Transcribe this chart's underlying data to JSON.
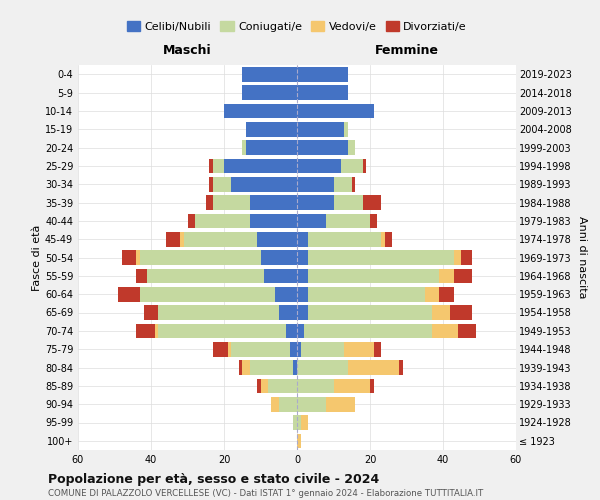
{
  "age_groups": [
    "100+",
    "95-99",
    "90-94",
    "85-89",
    "80-84",
    "75-79",
    "70-74",
    "65-69",
    "60-64",
    "55-59",
    "50-54",
    "45-49",
    "40-44",
    "35-39",
    "30-34",
    "25-29",
    "20-24",
    "15-19",
    "10-14",
    "5-9",
    "0-4"
  ],
  "birth_years": [
    "≤ 1923",
    "1924-1928",
    "1929-1933",
    "1934-1938",
    "1939-1943",
    "1944-1948",
    "1949-1953",
    "1954-1958",
    "1959-1963",
    "1964-1968",
    "1969-1973",
    "1974-1978",
    "1979-1983",
    "1984-1988",
    "1989-1993",
    "1994-1998",
    "1999-2003",
    "2004-2008",
    "2009-2013",
    "2014-2018",
    "2019-2023"
  ],
  "maschi_celibe": [
    0,
    0,
    0,
    0,
    1,
    2,
    3,
    5,
    6,
    9,
    10,
    11,
    13,
    13,
    18,
    20,
    14,
    14,
    20,
    15,
    15
  ],
  "maschi_coniugato": [
    0,
    1,
    5,
    8,
    12,
    16,
    35,
    33,
    37,
    32,
    33,
    20,
    15,
    10,
    5,
    3,
    1,
    0,
    0,
    0,
    0
  ],
  "maschi_vedovo": [
    0,
    0,
    2,
    2,
    2,
    1,
    1,
    0,
    0,
    0,
    1,
    1,
    0,
    0,
    0,
    0,
    0,
    0,
    0,
    0,
    0
  ],
  "maschi_divorziato": [
    0,
    0,
    0,
    1,
    1,
    4,
    5,
    4,
    6,
    3,
    4,
    4,
    2,
    2,
    1,
    1,
    0,
    0,
    0,
    0,
    0
  ],
  "femmine_celibe": [
    0,
    0,
    0,
    0,
    0,
    1,
    2,
    3,
    3,
    3,
    3,
    3,
    8,
    10,
    10,
    12,
    14,
    13,
    21,
    14,
    14
  ],
  "femmine_coniugato": [
    0,
    1,
    8,
    10,
    14,
    12,
    35,
    34,
    32,
    36,
    40,
    20,
    12,
    8,
    5,
    6,
    2,
    1,
    0,
    0,
    0
  ],
  "femmine_vedovo": [
    1,
    2,
    8,
    10,
    14,
    8,
    7,
    5,
    4,
    4,
    2,
    1,
    0,
    0,
    0,
    0,
    0,
    0,
    0,
    0,
    0
  ],
  "femmine_divorziato": [
    0,
    0,
    0,
    1,
    1,
    2,
    5,
    6,
    4,
    5,
    3,
    2,
    2,
    5,
    1,
    1,
    0,
    0,
    0,
    0,
    0
  ],
  "color_celibe": "#4472c4",
  "color_coniugato": "#c5d9a0",
  "color_vedovo": "#f5c76e",
  "color_divorziato": "#c0392b",
  "title": "Popolazione per età, sesso e stato civile - 2024",
  "subtitle": "COMUNE DI PALAZZOLO VERCELLESE (VC) - Dati ISTAT 1° gennaio 2024 - Elaborazione TUTTITALIA.IT",
  "xlabel_maschi": "Maschi",
  "xlabel_femmine": "Femmine",
  "ylabel_left": "Fasce di età",
  "ylabel_right": "Anni di nascita",
  "xlim": 60,
  "bg_color": "#f0f0f0",
  "plot_bg": "#ffffff"
}
